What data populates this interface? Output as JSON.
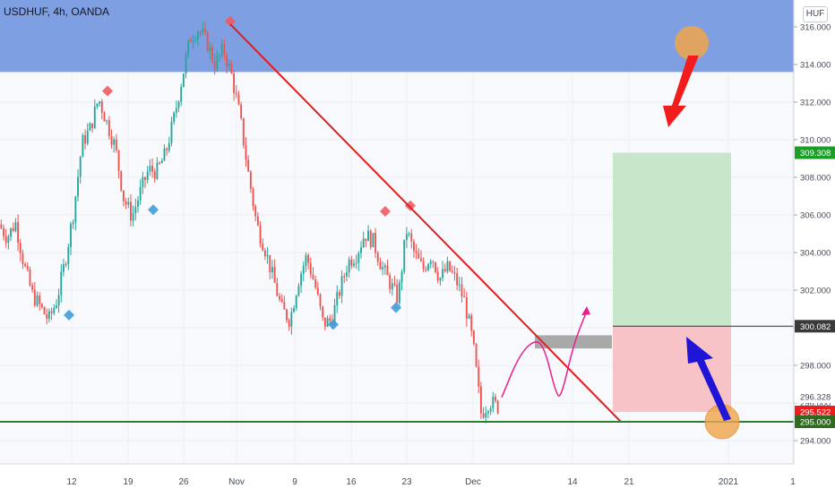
{
  "header": {
    "title": "USDHUF, 4h, OANDA",
    "currency": "HUF"
  },
  "colors": {
    "up": "#26a69a",
    "down": "#ef5350",
    "resistance_zone": "#7f9fe3",
    "trendline": "#e31e1e",
    "support_line": "#2e7d32",
    "target_zone": "#c8e6c9",
    "stop_zone": "#f8c3c7",
    "path": "#e91e8c",
    "highlight_circle": "#f0a54a",
    "down_arrow": "#f21c1c",
    "up_arrow": "#2014d6",
    "price_tag_green": "#1a9e28",
    "price_tag_red": "#ee1c1c",
    "price_tag_dark": "#3a3a3a"
  },
  "chart_data": {
    "type": "candlestick",
    "title": "USDHUF, 4h, OANDA",
    "y_axis": {
      "ticks": [
        "316.000",
        "314.000",
        "312.000",
        "310.000",
        "308.000",
        "306.000",
        "304.000",
        "302.000",
        "300.000",
        "298.000",
        "296.000",
        "294.000"
      ],
      "range": [
        293.0,
        317.0
      ]
    },
    "x_axis": {
      "ticks": [
        "12",
        "19",
        "26",
        "Nov",
        "9",
        "16",
        "23",
        "Dec",
        "14",
        "21",
        "2021",
        "1"
      ]
    },
    "price_tags": [
      {
        "label": "309.308",
        "value": 309.308,
        "kind": "green"
      },
      {
        "label": "300.082",
        "value": 300.082,
        "kind": "dark"
      },
      {
        "label": "296.328",
        "value": 296.328,
        "kind": "plain"
      },
      {
        "label": "295.522",
        "value": 295.522,
        "kind": "red"
      },
      {
        "label": "295.000",
        "value": 295.0,
        "kind": "darkgreen"
      }
    ],
    "path_keypoints": [
      305.5,
      304.8,
      305.6,
      303.4,
      301.8,
      301.1,
      300.4,
      301.5,
      303.6,
      306.2,
      309.8,
      310.6,
      312.2,
      310.9,
      309.6,
      306.9,
      305.9,
      307.2,
      308.4,
      308.3,
      309.2,
      311.0,
      313.2,
      315.4,
      315.9,
      315.2,
      314.0,
      314.8,
      313.4,
      311.2,
      308.2,
      305.5,
      304.2,
      302.6,
      301.0,
      300.4,
      302.5,
      303.8,
      302.3,
      300.2,
      300.4,
      302.0,
      303.5,
      303.9,
      305.0,
      304.6,
      303.3,
      302.4,
      301.5,
      305.2,
      303.9,
      303.1,
      303.9,
      302.6,
      303.2,
      302.5,
      301.4,
      299.2,
      295.4,
      296.1,
      295.8
    ],
    "markers": [
      {
        "type": "high",
        "value": 316.1
      },
      {
        "type": "high",
        "value": 312.4
      },
      {
        "type": "high",
        "value": 306.0
      },
      {
        "type": "high",
        "value": 306.3
      },
      {
        "type": "low",
        "value": 301.1
      },
      {
        "type": "low",
        "value": 306.7
      },
      {
        "type": "low",
        "value": 300.6
      },
      {
        "type": "low",
        "value": 301.5
      }
    ],
    "trendline": {
      "from": 316.0,
      "to": 295.0
    },
    "resistance_zone": {
      "from": 313.6,
      "to": 317.0
    },
    "support_level": 295.0,
    "position": {
      "entry": 300.082,
      "target": 309.308,
      "stop": 295.522
    },
    "grey_box": {
      "from": 298.9,
      "to": 299.6
    },
    "projection_path": [
      296.3,
      298.6,
      299.4,
      298.9,
      296.6,
      296.2,
      299.1,
      300.9
    ]
  }
}
